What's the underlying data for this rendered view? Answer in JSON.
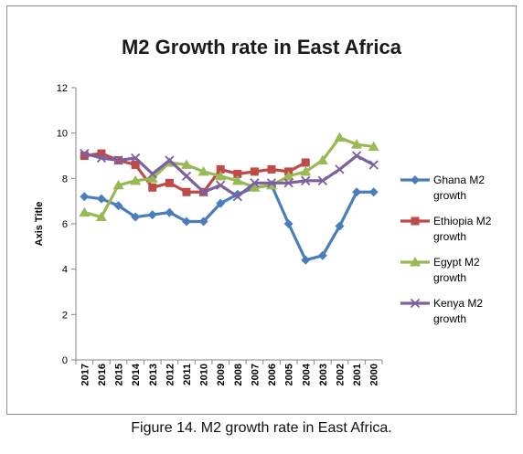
{
  "caption": "Figure 14. M2 growth rate in East Africa.",
  "chart_data": {
    "type": "line",
    "title": "M2 Growth rate in East Africa",
    "xlabel": "",
    "ylabel": "Axis Title",
    "ylim": [
      0,
      12
    ],
    "yticks": [
      0,
      2,
      4,
      6,
      8,
      10,
      12
    ],
    "grid": false,
    "legend_position": "right",
    "categories": [
      "2017",
      "2016",
      "2015",
      "2014",
      "2013",
      "2012",
      "2011",
      "2010",
      "2009",
      "2008",
      "2007",
      "2006",
      "2005",
      "2004",
      "2003",
      "2002",
      "2001",
      "2000"
    ],
    "series": [
      {
        "name": "Ghana M2 growth",
        "legend_lines": [
          "Ghana M2",
          "growth"
        ],
        "color": "#4a7ebb",
        "marker": "diamond",
        "values": [
          7.2,
          7.1,
          6.8,
          6.3,
          6.4,
          6.5,
          6.1,
          6.1,
          6.9,
          7.3,
          7.6,
          7.7,
          6.0,
          4.4,
          4.6,
          5.9,
          7.4,
          7.4
        ]
      },
      {
        "name": "Ethiopia M2 growth",
        "legend_lines": [
          "Ethiopia M2",
          "growth"
        ],
        "color": "#be4b48",
        "marker": "square",
        "values": [
          9.0,
          9.1,
          8.8,
          8.6,
          7.6,
          7.8,
          7.4,
          7.4,
          8.4,
          8.2,
          8.3,
          8.4,
          8.3,
          8.7,
          null,
          null,
          null,
          null
        ]
      },
      {
        "name": "Egypt M2 growth",
        "legend_lines": [
          "Egypt M2",
          "growth"
        ],
        "color": "#98b954",
        "marker": "triangle",
        "values": [
          6.5,
          6.3,
          7.7,
          7.9,
          8.0,
          8.7,
          8.6,
          8.3,
          8.1,
          7.9,
          7.6,
          7.7,
          8.1,
          8.3,
          8.8,
          9.8,
          9.5,
          9.4
        ]
      },
      {
        "name": "Kenya M2 growth",
        "legend_lines": [
          "Kenya M2",
          "growth"
        ],
        "color": "#7d60a0",
        "marker": "x",
        "values": [
          9.1,
          8.9,
          8.8,
          8.9,
          8.2,
          8.8,
          8.1,
          7.4,
          7.7,
          7.2,
          7.8,
          7.8,
          7.8,
          7.9,
          7.9,
          8.4,
          9.0,
          8.6
        ]
      }
    ]
  }
}
